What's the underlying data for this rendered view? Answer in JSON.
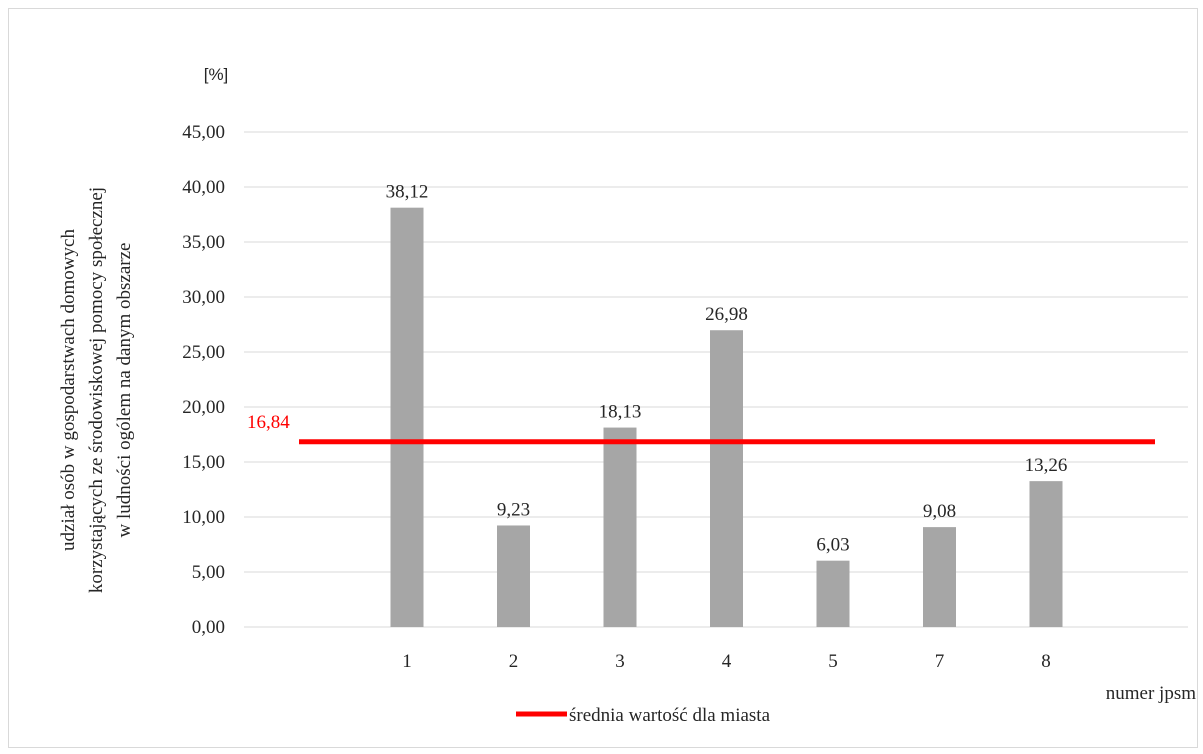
{
  "chart_data": {
    "type": "bar",
    "categories": [
      "1",
      "2",
      "3",
      "4",
      "5",
      "7",
      "8"
    ],
    "values": [
      38.12,
      9.23,
      18.13,
      26.98,
      6.03,
      9.08,
      13.26
    ],
    "value_labels": [
      "38,12",
      "9,23",
      "18,13",
      "26,98",
      "6,03",
      "9,08",
      "13,26"
    ],
    "ylim": [
      0,
      45
    ],
    "yticks": [
      "0,00",
      "5,00",
      "10,00",
      "15,00",
      "20,00",
      "25,00",
      "30,00",
      "35,00",
      "40,00",
      "45,00"
    ],
    "ytick_values": [
      0,
      5,
      10,
      15,
      20,
      25,
      30,
      35,
      40,
      45
    ],
    "y_unit": "[%]",
    "ylabel_lines": [
      "udział osób w gospodarstwach domowych",
      "korzystających ze środowiskowej pomocy społecznej",
      "w ludności ogólem na danym obszarze"
    ],
    "xlabel": "numer jpsm",
    "reference_line": {
      "name": "średnia wartość dla miasta",
      "value": 16.84,
      "label": "16,84",
      "color": "#ff0000"
    },
    "bar_color": "#a6a6a6",
    "grid": true,
    "legend_position": "bottom"
  }
}
